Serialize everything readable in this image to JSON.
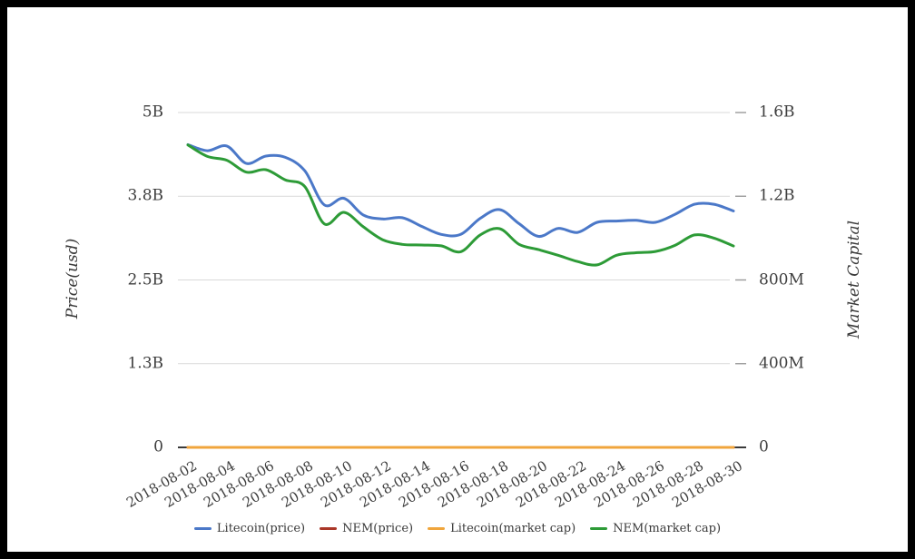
{
  "page": {
    "background": "#ffffff",
    "frame_color": "#000000"
  },
  "chart_data": {
    "type": "line",
    "title": "",
    "xlabel": "",
    "left_axis": {
      "label": "Price(usd)",
      "ticks": [
        "0",
        "1.3B",
        "2.5B",
        "3.8B",
        "5B"
      ],
      "max": 5,
      "unit": "B",
      "grid": true
    },
    "right_axis": {
      "label": "Market Capital",
      "ticks": [
        "0",
        "400M",
        "800M",
        "1.2B",
        "1.6B"
      ],
      "max": 1600,
      "unit": "M",
      "grid": false
    },
    "x_tick_labels": [
      "2018-08-02",
      "2018-08-04",
      "2018-08-06",
      "2018-08-08",
      "2018-08-10",
      "2018-08-12",
      "2018-08-14",
      "2018-08-16",
      "2018-08-18",
      "2018-08-20",
      "2018-08-22",
      "2018-08-24",
      "2018-08-26",
      "2018-08-28",
      "2018-08-30"
    ],
    "dates": [
      "2018-08-02",
      "2018-08-03",
      "2018-08-04",
      "2018-08-05",
      "2018-08-06",
      "2018-08-07",
      "2018-08-08",
      "2018-08-09",
      "2018-08-10",
      "2018-08-11",
      "2018-08-12",
      "2018-08-13",
      "2018-08-14",
      "2018-08-15",
      "2018-08-16",
      "2018-08-17",
      "2018-08-18",
      "2018-08-19",
      "2018-08-20",
      "2018-08-21",
      "2018-08-22",
      "2018-08-23",
      "2018-08-24",
      "2018-08-25",
      "2018-08-26",
      "2018-08-27",
      "2018-08-28",
      "2018-08-29",
      "2018-08-30"
    ],
    "legend_position": "bottom",
    "series": [
      {
        "name": "Litecoin(price)",
        "color": "#4b78c8",
        "axis": "left",
        "values": [
          4.52,
          4.43,
          4.5,
          4.24,
          4.35,
          4.33,
          4.13,
          3.62,
          3.72,
          3.47,
          3.41,
          3.43,
          3.3,
          3.18,
          3.18,
          3.42,
          3.55,
          3.34,
          3.15,
          3.27,
          3.21,
          3.36,
          3.38,
          3.39,
          3.36,
          3.48,
          3.63,
          3.63,
          3.53
        ]
      },
      {
        "name": "NEM(price)",
        "color": "#aa3728",
        "axis": "left",
        "values": [
          0,
          0,
          0,
          0,
          0,
          0,
          0,
          0,
          0,
          0,
          0,
          0,
          0,
          0,
          0,
          0,
          0,
          0,
          0,
          0,
          0,
          0,
          0,
          0,
          0,
          0,
          0,
          0,
          0
        ]
      },
      {
        "name": "Litecoin(market cap)",
        "color": "#f0a53c",
        "axis": "right",
        "values": [
          0,
          0,
          0,
          0,
          0,
          0,
          0,
          0,
          0,
          0,
          0,
          0,
          0,
          0,
          0,
          0,
          0,
          0,
          0,
          0,
          0,
          0,
          0,
          0,
          0,
          0,
          0,
          0,
          0
        ]
      },
      {
        "name": "NEM(market cap)",
        "color": "#2d9b37",
        "axis": "right",
        "values": [
          1445,
          1390,
          1372,
          1315,
          1327,
          1278,
          1246,
          1068,
          1123,
          1054,
          992,
          970,
          967,
          963,
          935,
          1015,
          1045,
          970,
          945,
          918,
          888,
          872,
          918,
          930,
          936,
          965,
          1015,
          1000,
          962
        ]
      }
    ]
  }
}
